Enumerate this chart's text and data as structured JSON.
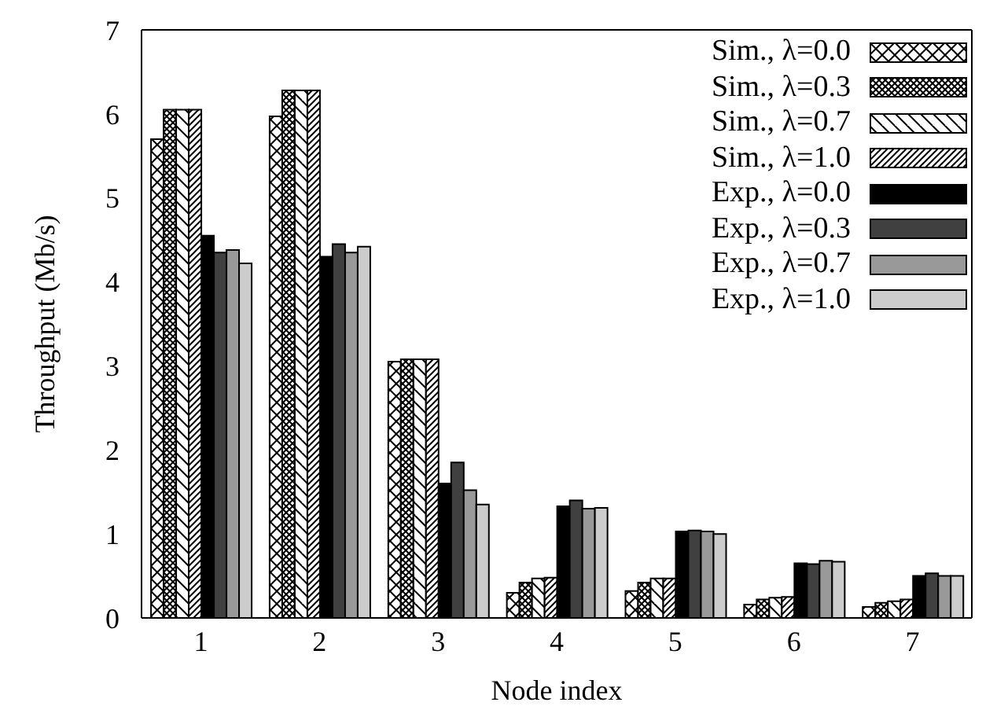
{
  "chart_data": {
    "type": "bar",
    "xlabel": "Node index",
    "ylabel": "Throughput (Mb/s)",
    "categories": [
      "1",
      "2",
      "3",
      "4",
      "5",
      "6",
      "7"
    ],
    "ylim": [
      0,
      7
    ],
    "yticks": [
      0,
      1,
      2,
      3,
      4,
      5,
      6,
      7
    ],
    "grid": false,
    "legend": "top right",
    "series": [
      {
        "name": "Sim., λ=0.0",
        "color": "#000000",
        "values": [
          5.7,
          5.97,
          3.05,
          0.3,
          0.32,
          0.16,
          0.13
        ]
      },
      {
        "name": "Sim., λ=0.3",
        "color": "#000000",
        "values": [
          6.05,
          6.28,
          3.08,
          0.42,
          0.42,
          0.22,
          0.18
        ]
      },
      {
        "name": "Sim., λ=0.7",
        "color": "#000000",
        "values": [
          6.05,
          6.28,
          3.08,
          0.47,
          0.47,
          0.24,
          0.2
        ]
      },
      {
        "name": "Sim., λ=1.0",
        "color": "#000000",
        "values": [
          6.05,
          6.28,
          3.08,
          0.48,
          0.47,
          0.25,
          0.22
        ]
      },
      {
        "name": "Exp., λ=0.0",
        "color": "#000000",
        "values": [
          4.55,
          4.3,
          1.6,
          1.33,
          1.03,
          0.65,
          0.5
        ]
      },
      {
        "name": "Exp., λ=0.3",
        "color": "#404040",
        "values": [
          4.35,
          4.45,
          1.85,
          1.4,
          1.04,
          0.64,
          0.53
        ]
      },
      {
        "name": "Exp., λ=0.7",
        "color": "#999999",
        "values": [
          4.38,
          4.35,
          1.52,
          1.3,
          1.03,
          0.68,
          0.5
        ]
      },
      {
        "name": "Exp., λ=1.0",
        "color": "#cccccc",
        "values": [
          4.22,
          4.42,
          1.35,
          1.31,
          1.0,
          0.67,
          0.5
        ]
      }
    ]
  }
}
